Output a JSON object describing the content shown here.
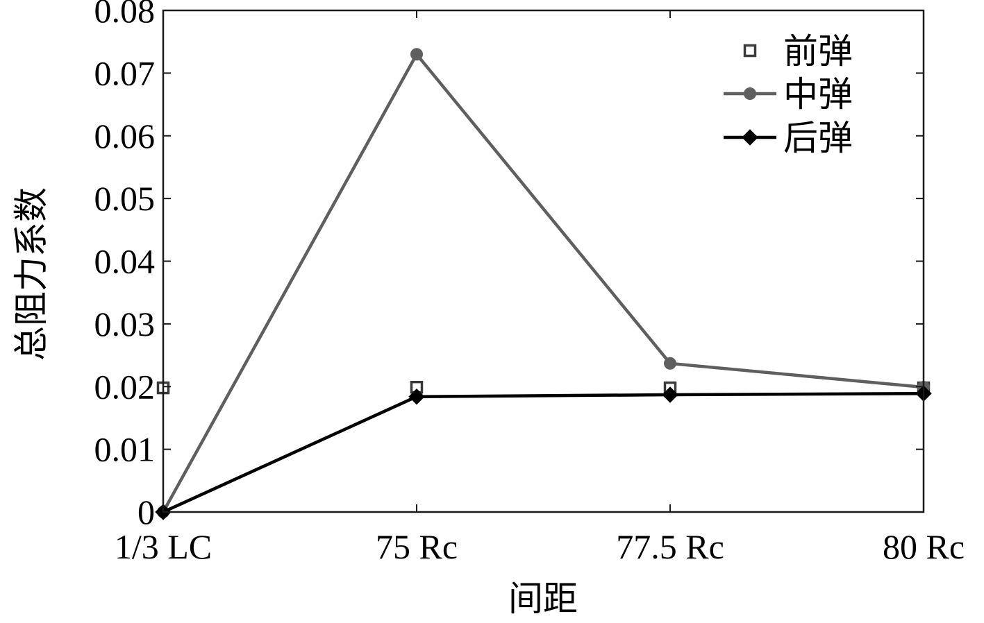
{
  "chart_data": {
    "type": "line",
    "title": "",
    "xlabel": "间距",
    "ylabel": "总阻力系数",
    "categories": [
      "1/3 LC",
      "75 Rc",
      "77.5 Rc",
      "80 Rc"
    ],
    "yticks": [
      "0",
      "0.01",
      "0.02",
      "0.03",
      "0.04",
      "0.05",
      "0.06",
      "0.07",
      "0.08"
    ],
    "ylim": [
      0,
      0.08
    ],
    "grid": false,
    "legend_position": "top-right",
    "series": [
      {
        "name": "前弹",
        "marker": "square-open",
        "line": false,
        "color": "#3a3a3a",
        "values": [
          0.0198,
          0.0199,
          0.0198,
          0.0198
        ]
      },
      {
        "name": "中弹",
        "marker": "circle",
        "line": true,
        "color": "#5f5f5f",
        "values": [
          0,
          0.073,
          0.0237,
          0.0199
        ]
      },
      {
        "name": "后弹",
        "marker": "diamond",
        "line": true,
        "color": "#000000",
        "values": [
          0,
          0.0184,
          0.0187,
          0.0189
        ]
      }
    ]
  }
}
